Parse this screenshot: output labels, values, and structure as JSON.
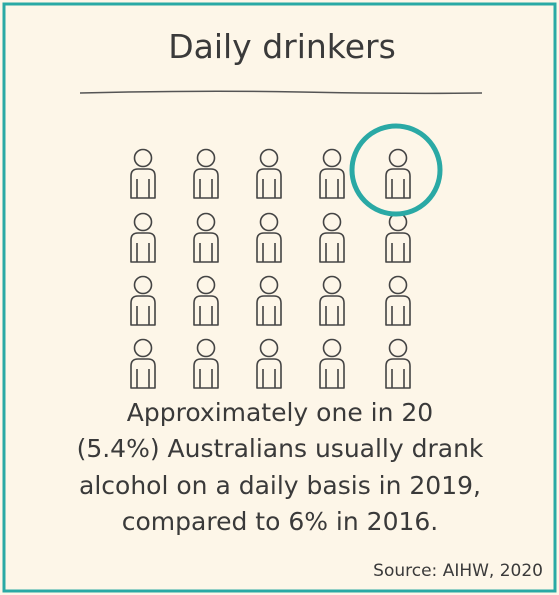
{
  "title": "Daily drinkers",
  "body": [
    "Approximately one in 20",
    "(5.4%) Australians usually drank",
    "alcohol on a daily basis in 2019,",
    "compared to 6% in 2016."
  ],
  "source": "Source: AIHW, 2020"
}
